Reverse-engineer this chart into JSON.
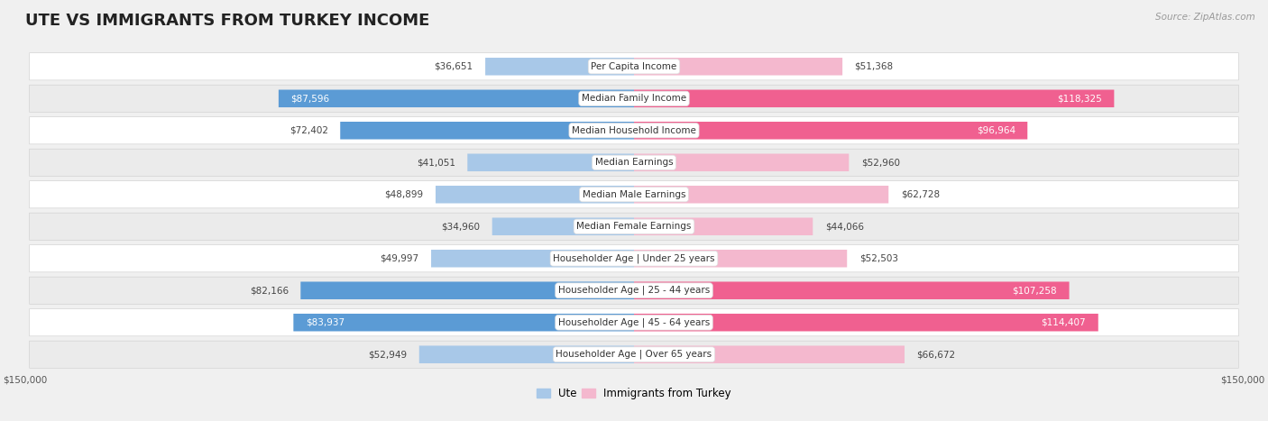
{
  "title": "UTE VS IMMIGRANTS FROM TURKEY INCOME",
  "source": "Source: ZipAtlas.com",
  "categories": [
    "Per Capita Income",
    "Median Family Income",
    "Median Household Income",
    "Median Earnings",
    "Median Male Earnings",
    "Median Female Earnings",
    "Householder Age | Under 25 years",
    "Householder Age | 25 - 44 years",
    "Householder Age | 45 - 64 years",
    "Householder Age | Over 65 years"
  ],
  "ute_values": [
    36651,
    87596,
    72402,
    41051,
    48899,
    34960,
    49997,
    82166,
    83937,
    52949
  ],
  "turkey_values": [
    51368,
    118325,
    96964,
    52960,
    62728,
    44066,
    52503,
    107258,
    114407,
    66672
  ],
  "ute_color_light": "#a8c8e8",
  "ute_color_dark": "#5b9bd5",
  "turkey_color_light": "#f4b8ce",
  "turkey_color_dark": "#f06090",
  "ute_dark_threshold": 70000,
  "turkey_dark_threshold": 90000,
  "max_value": 150000,
  "bg_color": "#f0f0f0",
  "row_colors": [
    "#ffffff",
    "#ebebeb"
  ],
  "title_fontsize": 13,
  "label_fontsize": 7.5,
  "value_fontsize": 7.5,
  "legend_fontsize": 8.5,
  "source_fontsize": 7.5,
  "value_inside_threshold": 0.55
}
